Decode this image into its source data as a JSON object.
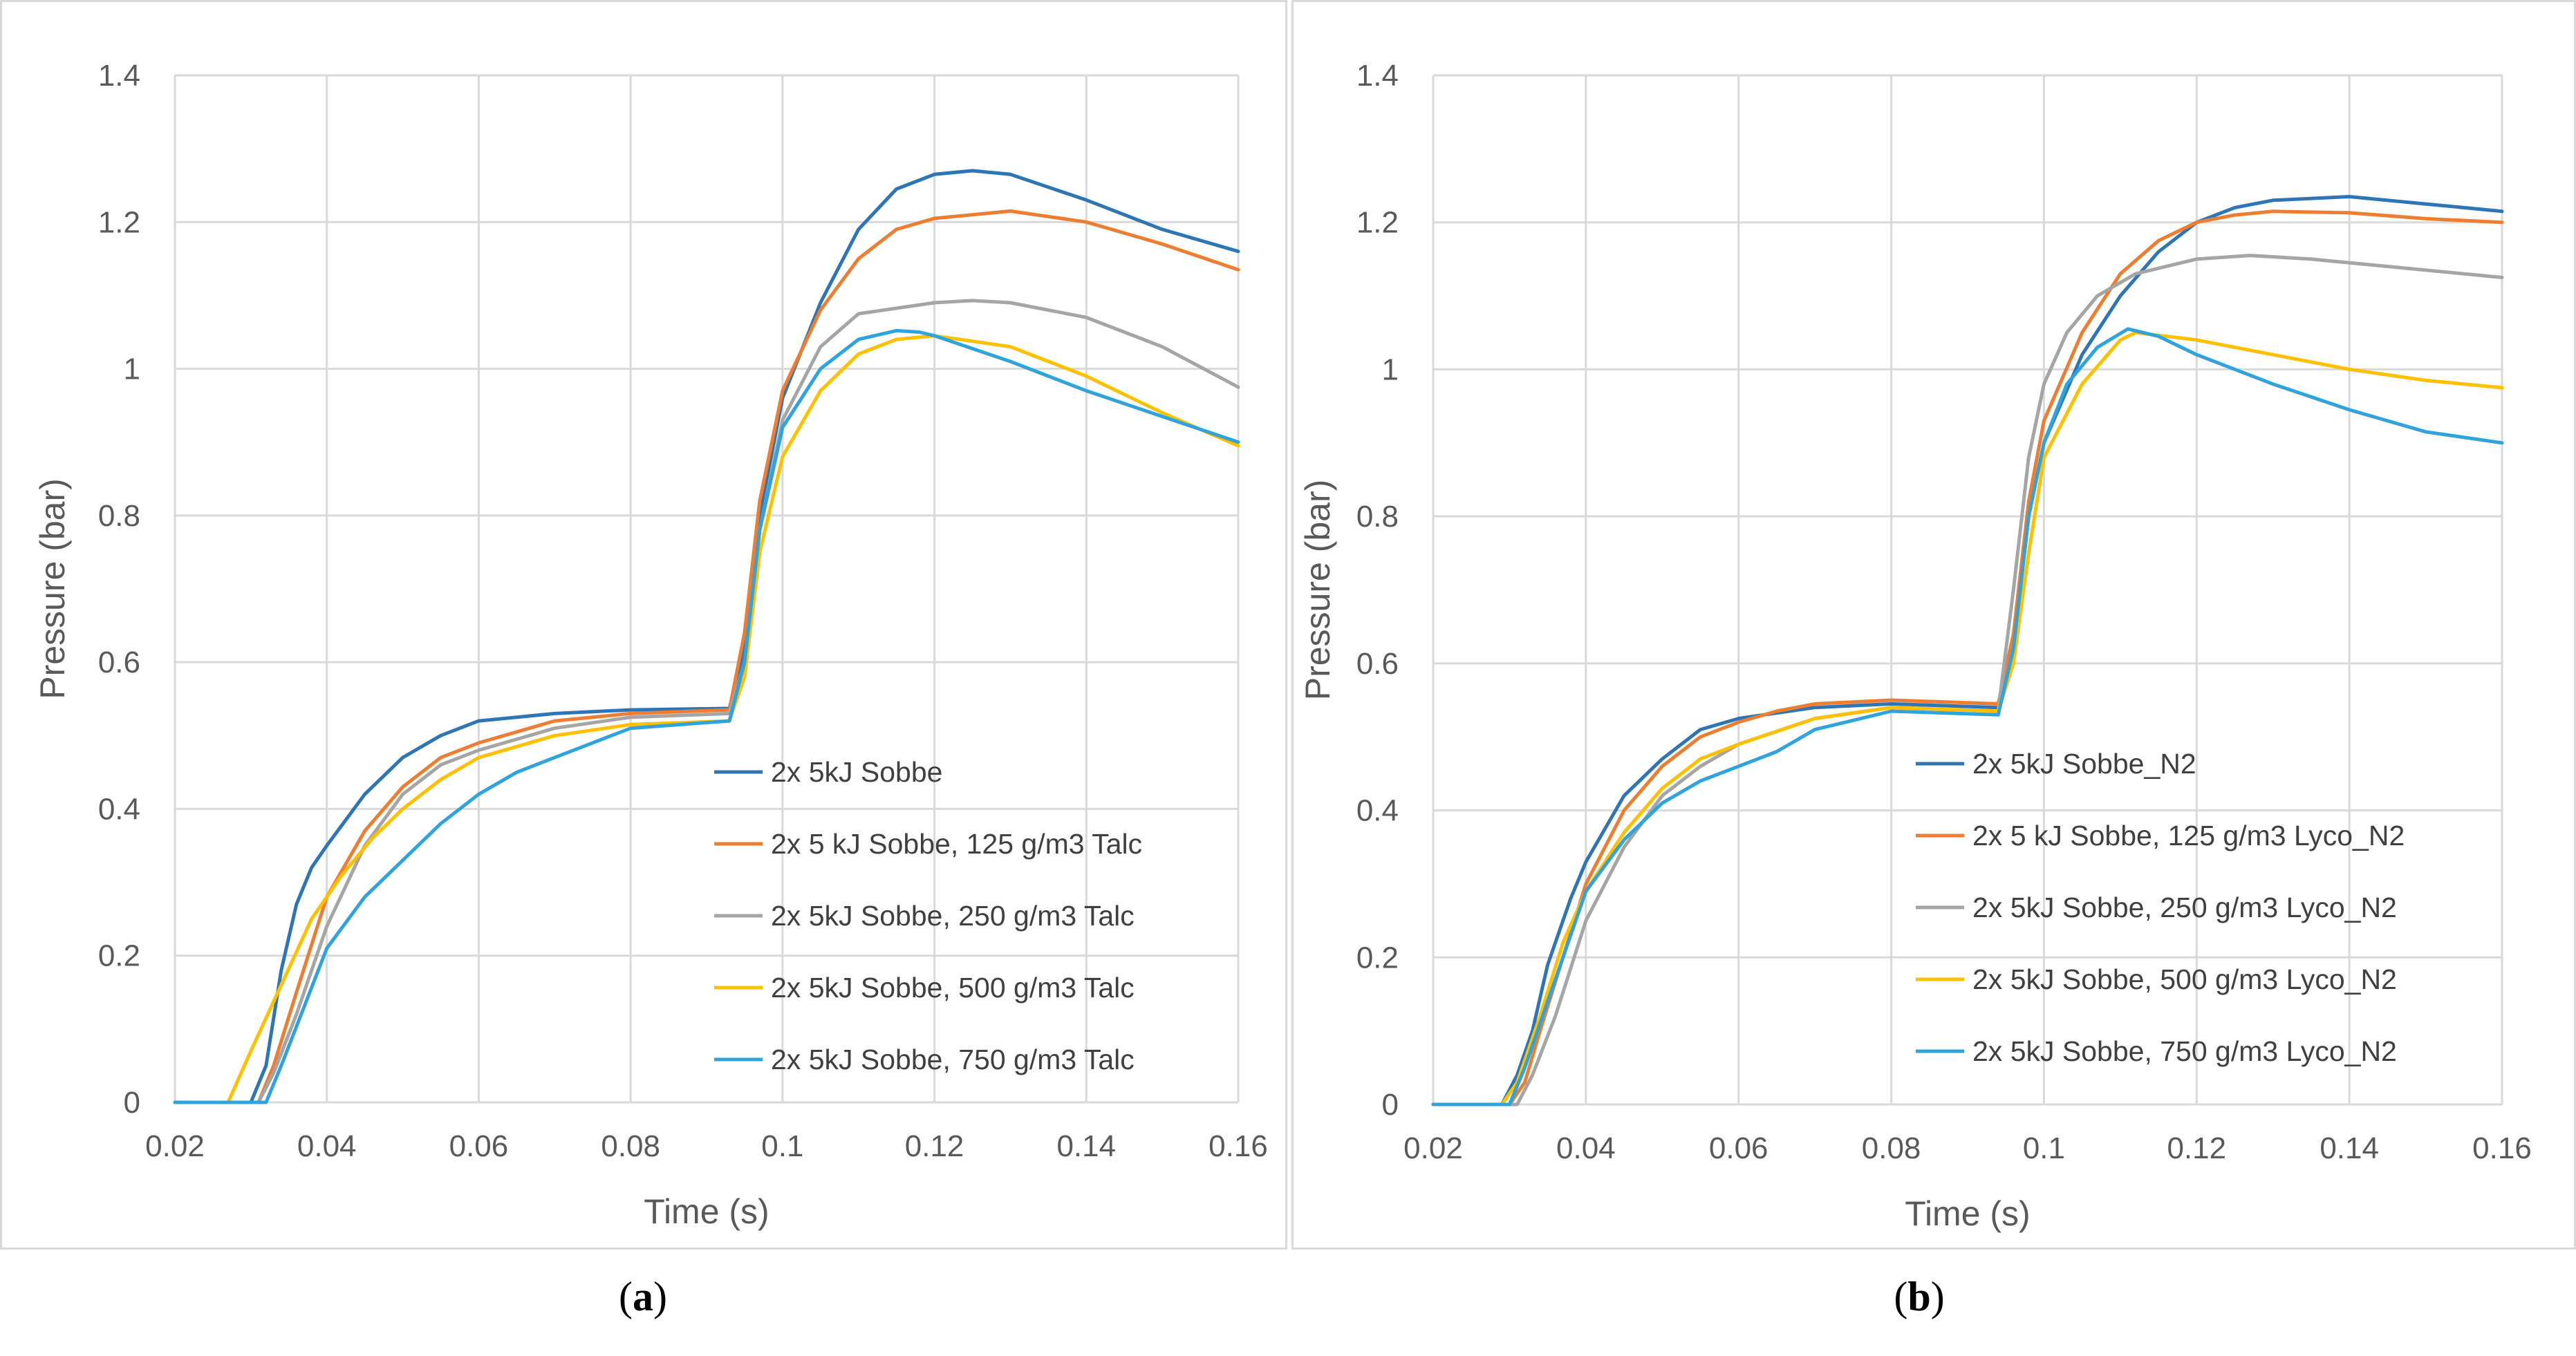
{
  "captions": [
    {
      "open": "(",
      "letter": "a",
      "close": ")"
    },
    {
      "open": "(",
      "letter": "b",
      "close": ")"
    }
  ],
  "chart_data": [
    {
      "type": "line",
      "xlabel": "Time (s)",
      "ylabel": "Pressure (bar)",
      "xlim": [
        0.02,
        0.16
      ],
      "ylim": [
        0,
        1.4
      ],
      "xticks": [
        "0.02",
        "0.04",
        "0.06",
        "0.08",
        "0.1",
        "0.12",
        "0.14",
        "0.16"
      ],
      "yticks": [
        "0",
        "0.2",
        "0.4",
        "0.6",
        "0.8",
        "1",
        "1.2",
        "1.4"
      ],
      "grid": true,
      "legend": "bottom-right",
      "series": [
        {
          "name": "2x 5kJ Sobbe",
          "color": "#2e75b6",
          "points": [
            [
              0.02,
              0
            ],
            [
              0.03,
              0
            ],
            [
              0.032,
              0.05
            ],
            [
              0.034,
              0.18
            ],
            [
              0.036,
              0.27
            ],
            [
              0.038,
              0.32
            ],
            [
              0.04,
              0.35
            ],
            [
              0.045,
              0.42
            ],
            [
              0.05,
              0.47
            ],
            [
              0.055,
              0.5
            ],
            [
              0.06,
              0.52
            ],
            [
              0.07,
              0.53
            ],
            [
              0.08,
              0.535
            ],
            [
              0.093,
              0.537
            ],
            [
              0.095,
              0.62
            ],
            [
              0.097,
              0.8
            ],
            [
              0.1,
              0.96
            ],
            [
              0.105,
              1.09
            ],
            [
              0.11,
              1.19
            ],
            [
              0.115,
              1.245
            ],
            [
              0.12,
              1.265
            ],
            [
              0.125,
              1.27
            ],
            [
              0.13,
              1.265
            ],
            [
              0.14,
              1.23
            ],
            [
              0.15,
              1.19
            ],
            [
              0.16,
              1.16
            ]
          ]
        },
        {
          "name": "2x 5 kJ Sobbe, 125 g/m3 Talc",
          "color": "#ed7d31",
          "points": [
            [
              0.02,
              0
            ],
            [
              0.031,
              0
            ],
            [
              0.033,
              0.05
            ],
            [
              0.036,
              0.15
            ],
            [
              0.04,
              0.28
            ],
            [
              0.045,
              0.37
            ],
            [
              0.05,
              0.43
            ],
            [
              0.055,
              0.47
            ],
            [
              0.06,
              0.49
            ],
            [
              0.07,
              0.52
            ],
            [
              0.08,
              0.53
            ],
            [
              0.093,
              0.535
            ],
            [
              0.095,
              0.64
            ],
            [
              0.097,
              0.82
            ],
            [
              0.1,
              0.97
            ],
            [
              0.105,
              1.08
            ],
            [
              0.11,
              1.15
            ],
            [
              0.115,
              1.19
            ],
            [
              0.12,
              1.205
            ],
            [
              0.13,
              1.215
            ],
            [
              0.14,
              1.2
            ],
            [
              0.15,
              1.17
            ],
            [
              0.16,
              1.135
            ]
          ]
        },
        {
          "name": "2x 5kJ Sobbe, 250 g/m3 Talc",
          "color": "#a5a5a5",
          "points": [
            [
              0.02,
              0
            ],
            [
              0.031,
              0
            ],
            [
              0.033,
              0.04
            ],
            [
              0.036,
              0.12
            ],
            [
              0.04,
              0.24
            ],
            [
              0.045,
              0.35
            ],
            [
              0.05,
              0.42
            ],
            [
              0.055,
              0.46
            ],
            [
              0.06,
              0.48
            ],
            [
              0.07,
              0.51
            ],
            [
              0.08,
              0.525
            ],
            [
              0.093,
              0.53
            ],
            [
              0.095,
              0.6
            ],
            [
              0.097,
              0.78
            ],
            [
              0.1,
              0.93
            ],
            [
              0.105,
              1.03
            ],
            [
              0.11,
              1.075
            ],
            [
              0.12,
              1.09
            ],
            [
              0.125,
              1.093
            ],
            [
              0.13,
              1.09
            ],
            [
              0.14,
              1.07
            ],
            [
              0.15,
              1.03
            ],
            [
              0.16,
              0.975
            ]
          ]
        },
        {
          "name": "2x 5kJ Sobbe, 500 g/m3 Talc",
          "color": "#ffc000",
          "points": [
            [
              0.02,
              0
            ],
            [
              0.027,
              0
            ],
            [
              0.03,
              0.07
            ],
            [
              0.034,
              0.16
            ],
            [
              0.038,
              0.25
            ],
            [
              0.042,
              0.31
            ],
            [
              0.046,
              0.36
            ],
            [
              0.05,
              0.4
            ],
            [
              0.055,
              0.44
            ],
            [
              0.06,
              0.47
            ],
            [
              0.07,
              0.5
            ],
            [
              0.08,
              0.515
            ],
            [
              0.093,
              0.52
            ],
            [
              0.095,
              0.58
            ],
            [
              0.097,
              0.75
            ],
            [
              0.1,
              0.88
            ],
            [
              0.105,
              0.97
            ],
            [
              0.11,
              1.02
            ],
            [
              0.115,
              1.04
            ],
            [
              0.12,
              1.045
            ],
            [
              0.13,
              1.03
            ],
            [
              0.14,
              0.99
            ],
            [
              0.15,
              0.94
            ],
            [
              0.16,
              0.895
            ]
          ]
        },
        {
          "name": "2x 5kJ Sobbe, 750 g/m3 Talc",
          "color": "#2ea3dc",
          "points": [
            [
              0.02,
              0
            ],
            [
              0.032,
              0
            ],
            [
              0.034,
              0.05
            ],
            [
              0.037,
              0.13
            ],
            [
              0.04,
              0.21
            ],
            [
              0.045,
              0.28
            ],
            [
              0.05,
              0.33
            ],
            [
              0.055,
              0.38
            ],
            [
              0.06,
              0.42
            ],
            [
              0.065,
              0.45
            ],
            [
              0.07,
              0.47
            ],
            [
              0.08,
              0.51
            ],
            [
              0.093,
              0.52
            ],
            [
              0.095,
              0.6
            ],
            [
              0.097,
              0.78
            ],
            [
              0.1,
              0.92
            ],
            [
              0.105,
              1.0
            ],
            [
              0.11,
              1.04
            ],
            [
              0.115,
              1.052
            ],
            [
              0.118,
              1.05
            ],
            [
              0.12,
              1.045
            ],
            [
              0.13,
              1.01
            ],
            [
              0.14,
              0.97
            ],
            [
              0.15,
              0.935
            ],
            [
              0.16,
              0.9
            ]
          ]
        }
      ]
    },
    {
      "type": "line",
      "xlabel": "Time (s)",
      "ylabel": "Pressure (bar)",
      "xlim": [
        0.02,
        0.16
      ],
      "ylim": [
        0,
        1.4
      ],
      "xticks": [
        "0.02",
        "0.04",
        "0.06",
        "0.08",
        "0.1",
        "0.12",
        "0.14",
        "0.16"
      ],
      "yticks": [
        "0",
        "0.2",
        "0.4",
        "0.6",
        "0.8",
        "1",
        "1.2",
        "1.4"
      ],
      "grid": true,
      "legend": "bottom-right",
      "series": [
        {
          "name": "2x 5kJ Sobbe_N2",
          "color": "#2e75b6",
          "points": [
            [
              0.02,
              0
            ],
            [
              0.029,
              0
            ],
            [
              0.031,
              0.04
            ],
            [
              0.033,
              0.1
            ],
            [
              0.035,
              0.19
            ],
            [
              0.038,
              0.28
            ],
            [
              0.04,
              0.33
            ],
            [
              0.045,
              0.42
            ],
            [
              0.05,
              0.47
            ],
            [
              0.055,
              0.51
            ],
            [
              0.06,
              0.525
            ],
            [
              0.07,
              0.54
            ],
            [
              0.08,
              0.545
            ],
            [
              0.094,
              0.54
            ],
            [
              0.096,
              0.62
            ],
            [
              0.098,
              0.8
            ],
            [
              0.1,
              0.9
            ],
            [
              0.105,
              1.02
            ],
            [
              0.11,
              1.1
            ],
            [
              0.115,
              1.16
            ],
            [
              0.12,
              1.2
            ],
            [
              0.125,
              1.22
            ],
            [
              0.13,
              1.23
            ],
            [
              0.14,
              1.235
            ],
            [
              0.15,
              1.225
            ],
            [
              0.16,
              1.215
            ]
          ]
        },
        {
          "name": "2x 5 kJ Sobbe, 125 g/m3 Lyco_N2",
          "color": "#ed7d31",
          "points": [
            [
              0.02,
              0
            ],
            [
              0.03,
              0
            ],
            [
              0.032,
              0.03
            ],
            [
              0.034,
              0.1
            ],
            [
              0.037,
              0.2
            ],
            [
              0.04,
              0.3
            ],
            [
              0.045,
              0.4
            ],
            [
              0.05,
              0.46
            ],
            [
              0.055,
              0.5
            ],
            [
              0.06,
              0.52
            ],
            [
              0.065,
              0.535
            ],
            [
              0.07,
              0.545
            ],
            [
              0.08,
              0.55
            ],
            [
              0.094,
              0.545
            ],
            [
              0.096,
              0.64
            ],
            [
              0.098,
              0.82
            ],
            [
              0.1,
              0.93
            ],
            [
              0.105,
              1.05
            ],
            [
              0.11,
              1.13
            ],
            [
              0.115,
              1.175
            ],
            [
              0.12,
              1.2
            ],
            [
              0.125,
              1.21
            ],
            [
              0.13,
              1.215
            ],
            [
              0.14,
              1.213
            ],
            [
              0.15,
              1.205
            ],
            [
              0.16,
              1.2
            ]
          ]
        },
        {
          "name": "2x 5kJ Sobbe, 250 g/m3 Lyco_N2",
          "color": "#a5a5a5",
          "points": [
            [
              0.02,
              0
            ],
            [
              0.031,
              0
            ],
            [
              0.033,
              0.04
            ],
            [
              0.036,
              0.12
            ],
            [
              0.04,
              0.25
            ],
            [
              0.045,
              0.35
            ],
            [
              0.05,
              0.42
            ],
            [
              0.055,
              0.46
            ],
            [
              0.06,
              0.49
            ],
            [
              0.07,
              0.525
            ],
            [
              0.08,
              0.54
            ],
            [
              0.094,
              0.535
            ],
            [
              0.096,
              0.7
            ],
            [
              0.098,
              0.88
            ],
            [
              0.1,
              0.98
            ],
            [
              0.103,
              1.05
            ],
            [
              0.107,
              1.1
            ],
            [
              0.112,
              1.13
            ],
            [
              0.12,
              1.15
            ],
            [
              0.127,
              1.155
            ],
            [
              0.135,
              1.15
            ],
            [
              0.145,
              1.14
            ],
            [
              0.16,
              1.125
            ]
          ]
        },
        {
          "name": "2x 5kJ Sobbe, 500 g/m3 Lyco_N2",
          "color": "#ffc000",
          "points": [
            [
              0.02,
              0
            ],
            [
              0.029,
              0
            ],
            [
              0.031,
              0.03
            ],
            [
              0.034,
              0.12
            ],
            [
              0.037,
              0.22
            ],
            [
              0.04,
              0.29
            ],
            [
              0.045,
              0.37
            ],
            [
              0.05,
              0.43
            ],
            [
              0.055,
              0.47
            ],
            [
              0.06,
              0.49
            ],
            [
              0.07,
              0.525
            ],
            [
              0.08,
              0.54
            ],
            [
              0.094,
              0.535
            ],
            [
              0.096,
              0.6
            ],
            [
              0.098,
              0.75
            ],
            [
              0.1,
              0.88
            ],
            [
              0.105,
              0.98
            ],
            [
              0.11,
              1.04
            ],
            [
              0.112,
              1.05
            ],
            [
              0.12,
              1.04
            ],
            [
              0.13,
              1.02
            ],
            [
              0.14,
              1.0
            ],
            [
              0.15,
              0.985
            ],
            [
              0.16,
              0.975
            ]
          ]
        },
        {
          "name": "2x 5kJ Sobbe, 750 g/m3 Lyco_N2",
          "color": "#2ea3dc",
          "points": [
            [
              0.02,
              0
            ],
            [
              0.03,
              0
            ],
            [
              0.032,
              0.05
            ],
            [
              0.035,
              0.14
            ],
            [
              0.038,
              0.23
            ],
            [
              0.04,
              0.29
            ],
            [
              0.045,
              0.36
            ],
            [
              0.05,
              0.41
            ],
            [
              0.055,
              0.44
            ],
            [
              0.06,
              0.46
            ],
            [
              0.065,
              0.48
            ],
            [
              0.07,
              0.51
            ],
            [
              0.08,
              0.535
            ],
            [
              0.094,
              0.53
            ],
            [
              0.096,
              0.62
            ],
            [
              0.098,
              0.8
            ],
            [
              0.1,
              0.9
            ],
            [
              0.103,
              0.98
            ],
            [
              0.107,
              1.03
            ],
            [
              0.111,
              1.055
            ],
            [
              0.115,
              1.045
            ],
            [
              0.12,
              1.02
            ],
            [
              0.13,
              0.98
            ],
            [
              0.14,
              0.945
            ],
            [
              0.15,
              0.915
            ],
            [
              0.16,
              0.9
            ]
          ]
        }
      ]
    }
  ]
}
